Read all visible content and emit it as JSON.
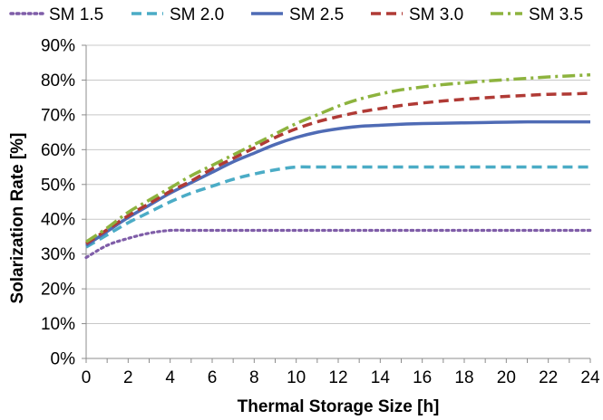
{
  "chart_data": {
    "type": "line",
    "title": "",
    "xlabel": "Thermal Storage Size [h]",
    "ylabel": "Solarization Rate [%]",
    "xlim": [
      0,
      24
    ],
    "ylim": [
      0,
      90
    ],
    "x_ticks": [
      0,
      2,
      4,
      6,
      8,
      10,
      12,
      14,
      16,
      18,
      20,
      22,
      24
    ],
    "x_tick_labels": [
      "0",
      "2",
      "4",
      "6",
      "8",
      "10",
      "12",
      "14",
      "16",
      "18",
      "20",
      "22",
      "24"
    ],
    "y_ticks": [
      0,
      10,
      20,
      30,
      40,
      50,
      60,
      70,
      80,
      90
    ],
    "y_tick_labels": [
      "0%",
      "10%",
      "20%",
      "30%",
      "40%",
      "50%",
      "60%",
      "70%",
      "80%",
      "90%"
    ],
    "grid": "horizontal",
    "legend_position": "top",
    "x": [
      0,
      1,
      2,
      3,
      4,
      5,
      6,
      7,
      8,
      9,
      10,
      11,
      12,
      13,
      14,
      15,
      16,
      17,
      18,
      19,
      20,
      21,
      22,
      23,
      24
    ],
    "series": [
      {
        "name": "SM 1.5",
        "color": "#7F5DA8",
        "dash": "dotted",
        "values": [
          29.0,
          32.5,
          34.5,
          36.0,
          36.8,
          36.8,
          36.8,
          36.8,
          36.8,
          36.8,
          36.8,
          36.8,
          36.8,
          36.8,
          36.8,
          36.8,
          36.8,
          36.8,
          36.8,
          36.8,
          36.8,
          36.8,
          36.8,
          36.8,
          36.8
        ]
      },
      {
        "name": "SM 2.0",
        "color": "#4BACC6",
        "dash": "dashed",
        "values": [
          32.0,
          35.5,
          39.0,
          42.0,
          45.0,
          47.5,
          49.5,
          51.5,
          53.0,
          54.2,
          55.0,
          55.0,
          55.0,
          55.0,
          55.0,
          55.0,
          55.0,
          55.0,
          55.0,
          55.0,
          55.0,
          55.0,
          55.0,
          55.0,
          55.0
        ]
      },
      {
        "name": "SM 2.5",
        "color": "#4F6BB5",
        "dash": "solid",
        "values": [
          32.5,
          36.5,
          40.5,
          44.0,
          47.5,
          50.5,
          53.5,
          56.5,
          59.0,
          61.5,
          63.5,
          65.0,
          66.0,
          66.7,
          67.0,
          67.3,
          67.5,
          67.6,
          67.7,
          67.8,
          67.9,
          68.0,
          68.0,
          68.0,
          68.0
        ]
      },
      {
        "name": "SM 3.0",
        "color": "#B03A35",
        "dash": "dashed",
        "values": [
          33.0,
          37.0,
          41.0,
          44.5,
          48.0,
          51.0,
          54.5,
          57.5,
          60.5,
          63.5,
          66.0,
          68.0,
          69.5,
          70.8,
          71.8,
          72.7,
          73.4,
          74.0,
          74.5,
          74.9,
          75.3,
          75.6,
          75.9,
          76.0,
          76.2
        ]
      },
      {
        "name": "SM 3.5",
        "color": "#8DB33E",
        "dash": "dashdot",
        "values": [
          33.5,
          37.5,
          42.0,
          45.5,
          49.0,
          52.5,
          55.5,
          58.5,
          61.5,
          64.5,
          67.5,
          70.0,
          72.5,
          74.5,
          76.0,
          77.2,
          78.0,
          78.7,
          79.2,
          79.7,
          80.1,
          80.5,
          80.9,
          81.2,
          81.5
        ]
      }
    ]
  }
}
